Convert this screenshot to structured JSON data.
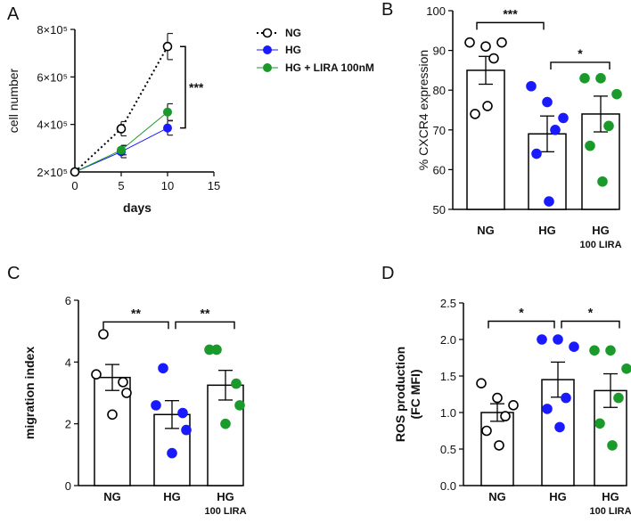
{
  "colors": {
    "ng": "#000000",
    "hg": "#1a1aff",
    "lira": "#1a9a2a",
    "axis": "#000000"
  },
  "chart_data": [
    {
      "panel": "A",
      "type": "line",
      "xlabel": "days",
      "ylabel": "cell number",
      "x_ticks": [
        "0",
        "5",
        "10",
        "15"
      ],
      "xlim": [
        0,
        15
      ],
      "y_ticks": [
        "2×10⁵",
        "4×10⁵",
        "6×10⁵",
        "8×10⁵"
      ],
      "ylim": [
        200000,
        800000
      ],
      "x": [
        0,
        5,
        10
      ],
      "series": [
        {
          "name": "NG",
          "values": [
            200000,
            382000,
            728000
          ],
          "errors": [
            0,
            30000,
            55000
          ]
        },
        {
          "name": "HG",
          "values": [
            200000,
            285000,
            385000
          ],
          "errors": [
            0,
            25000,
            30000
          ]
        },
        {
          "name": "HG + LIRA 100nM",
          "values": [
            200000,
            292000,
            452000
          ],
          "errors": [
            0,
            20000,
            35000
          ]
        }
      ],
      "significance": [
        {
          "label": "***",
          "between": [
            "NG",
            "HG"
          ]
        }
      ]
    },
    {
      "panel": "B",
      "type": "bar",
      "ylabel": "% CXCR4 expression",
      "categories": [
        "NG",
        "HG",
        "HG"
      ],
      "category_sub": [
        "",
        "",
        "100 LIRA"
      ],
      "y_ticks": [
        "50",
        "60",
        "70",
        "80",
        "90",
        "100"
      ],
      "ylim": [
        50,
        100
      ],
      "values": [
        85,
        69,
        74
      ],
      "errors": [
        3.5,
        4.5,
        4.5
      ],
      "points": [
        [
          92,
          91,
          92,
          88,
          74,
          76
        ],
        [
          81,
          77,
          73,
          70,
          64,
          52
        ],
        [
          83,
          83,
          79,
          71,
          66,
          57
        ]
      ],
      "significance": [
        {
          "label": "***",
          "from": 0,
          "to": 1,
          "y": 97
        },
        {
          "label": "*",
          "from": 1,
          "to": 2,
          "y": 87
        }
      ]
    },
    {
      "panel": "C",
      "type": "bar",
      "ylabel": "migration index",
      "categories": [
        "NG",
        "HG",
        "HG"
      ],
      "category_sub": [
        "",
        "",
        "100 LIRA"
      ],
      "y_ticks": [
        "0",
        "2",
        "4",
        "6"
      ],
      "ylim": [
        0,
        6
      ],
      "values": [
        3.5,
        2.3,
        3.25
      ],
      "errors": [
        0.42,
        0.45,
        0.48
      ],
      "points": [
        [
          4.9,
          3.6,
          3.35,
          3.0,
          2.3
        ],
        [
          3.8,
          2.6,
          2.35,
          1.8,
          1.05
        ],
        [
          4.4,
          4.4,
          3.3,
          2.6,
          2.0
        ]
      ],
      "significance": [
        {
          "label": "**",
          "from": 0,
          "to": 1,
          "y": 5.3
        },
        {
          "label": "**",
          "from": 1,
          "to": 2,
          "y": 5.3
        }
      ]
    },
    {
      "panel": "D",
      "type": "bar",
      "ylabel": "ROS production\n(FC MFI)",
      "categories": [
        "NG",
        "HG",
        "HG"
      ],
      "category_sub": [
        "",
        "",
        "100 LIRA"
      ],
      "y_ticks": [
        "0.0",
        "0.5",
        "1.0",
        "1.5",
        "2.0",
        "2.5"
      ],
      "ylim": [
        0,
        2.5
      ],
      "values": [
        1.0,
        1.45,
        1.3
      ],
      "errors": [
        0.12,
        0.24,
        0.23
      ],
      "points": [
        [
          1.4,
          1.2,
          1.1,
          0.95,
          0.75,
          0.55
        ],
        [
          2.0,
          2.0,
          1.9,
          1.2,
          1.05,
          0.8
        ],
        [
          1.85,
          1.85,
          1.6,
          1.2,
          0.85,
          0.55
        ]
      ],
      "significance": [
        {
          "label": "*",
          "from": 0,
          "to": 1,
          "y": 2.25
        },
        {
          "label": "*",
          "from": 1,
          "to": 2,
          "y": 2.25
        }
      ]
    }
  ]
}
